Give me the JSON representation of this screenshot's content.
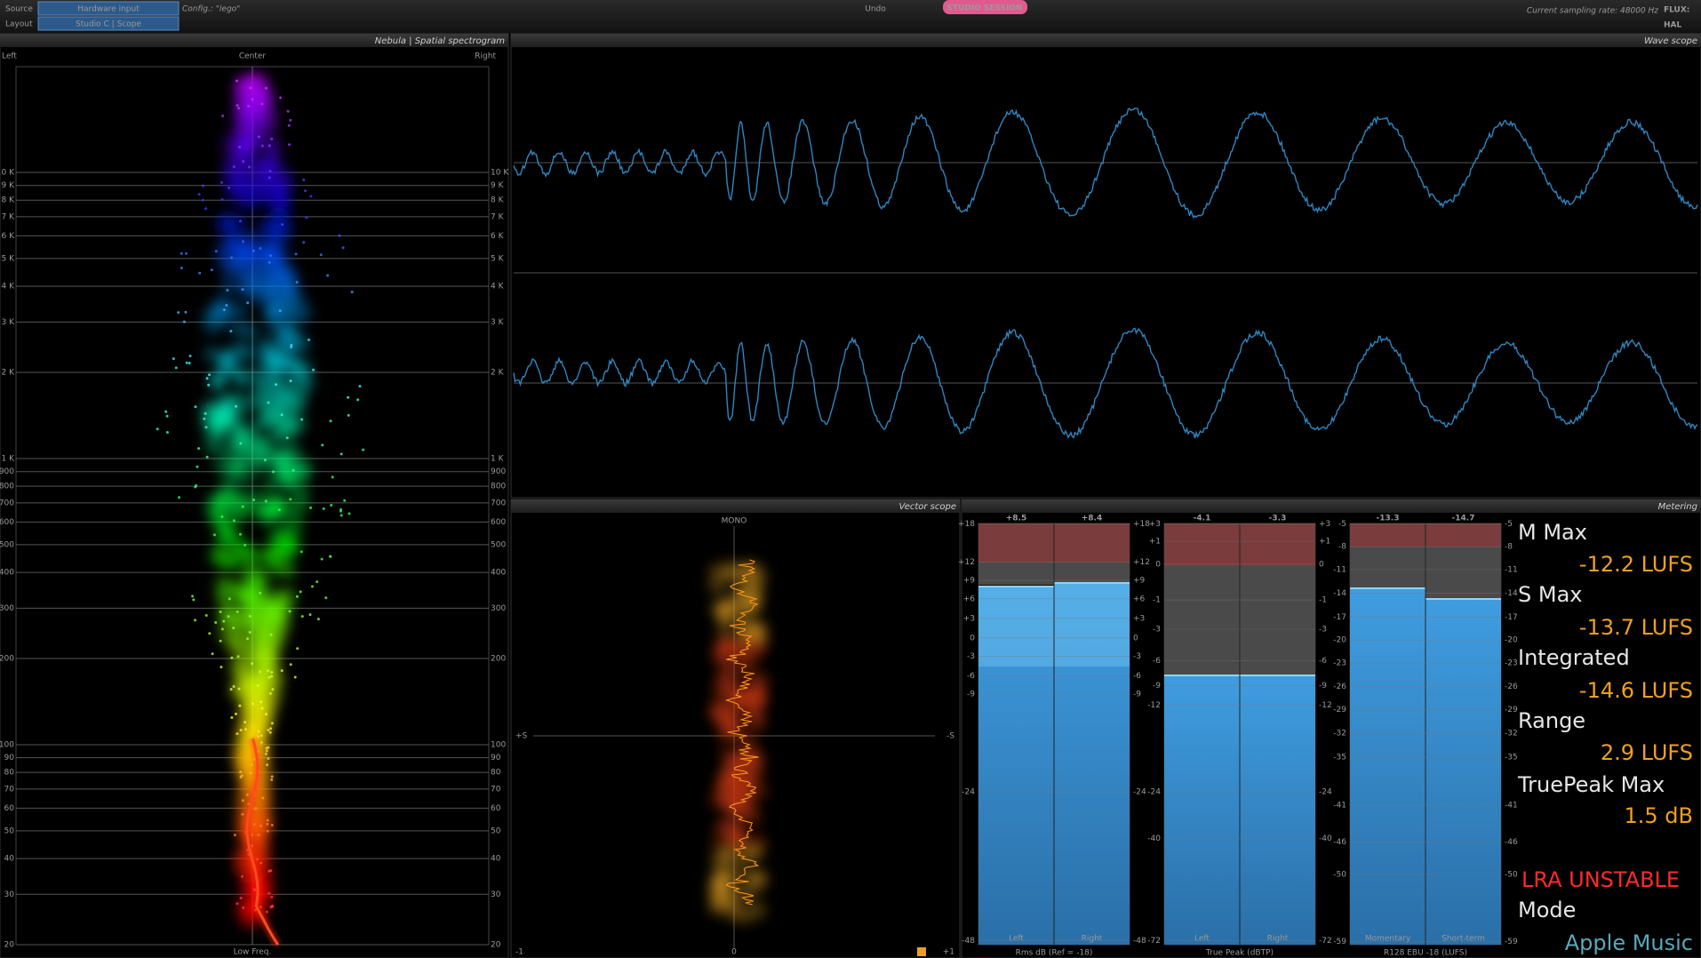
{
  "toolbar": {
    "source_label": "Source",
    "source_value": "Hardware input",
    "layout_label": "Layout",
    "layout_value": "Studio C | Scope",
    "config": "Config.: \"lego\"",
    "undo": "Undo",
    "session": "STUDIO SESSION",
    "sampling_rate": "Current sampling rate: 48000 Hz",
    "logo_top": "FLUX:",
    "logo_bottom": "HAL"
  },
  "spectrogram": {
    "title": "Nebula | Spatial spectrogram",
    "left": "Left",
    "center": "Center",
    "right": "Right",
    "bottom": "Low Freq.",
    "freq_ticks": [
      {
        "value": 10000,
        "label": "10 K"
      },
      {
        "value": 9000,
        "label": "9 K"
      },
      {
        "value": 8000,
        "label": "8 K"
      },
      {
        "value": 7000,
        "label": "7 K"
      },
      {
        "value": 6000,
        "label": "6 K"
      },
      {
        "value": 5000,
        "label": "5 K"
      },
      {
        "value": 4000,
        "label": "4 K"
      },
      {
        "value": 3000,
        "label": "3 K"
      },
      {
        "value": 2000,
        "label": "2 K"
      },
      {
        "value": 1000,
        "label": "1 K"
      },
      900,
      800,
      700,
      600,
      500,
      400,
      300,
      200,
      100,
      90,
      80,
      70,
      60,
      50,
      40,
      30,
      20
    ]
  },
  "wave_scope": {
    "title": "Wave scope"
  },
  "vector_scope": {
    "title": "Vector scope",
    "top": "MONO",
    "left": "+S",
    "right": "-S",
    "bottom_left": "-1",
    "bottom_center": "0",
    "bottom_right": "+1"
  },
  "metering": {
    "title": "Metering",
    "meters": [
      {
        "peaks": [
          "+8.5",
          "+8.4"
        ],
        "channels": [
          "Left",
          "Right"
        ],
        "footer": "Rms dB (Ref = -18)",
        "scale": [
          "+18",
          "+12",
          "+9",
          "+6",
          "+3",
          "0",
          "-3",
          "-6",
          "-9",
          "-24",
          "-48"
        ]
      },
      {
        "peaks": [
          "-4.1",
          "-3.3"
        ],
        "channels": [
          "Left",
          "Right"
        ],
        "footer": "True Peak (dBTP)",
        "scale": [
          "+3",
          "+1",
          "0",
          "-1",
          "-3",
          "-6",
          "-9",
          "-12",
          "-24",
          "-40",
          "-72"
        ]
      },
      {
        "peaks": [
          "-13.3",
          "-14.7"
        ],
        "channels": [
          "Momentary",
          "Short-term"
        ],
        "footer": "R128 EBU -18 (LUFS)",
        "scale": [
          "-5",
          "-8",
          "-11",
          "-14",
          "-17",
          "-20",
          "-23",
          "-26",
          "-29",
          "-32",
          "-35",
          "-41",
          "-46",
          "-50",
          "-59"
        ]
      }
    ],
    "readout": [
      {
        "label": "M Max",
        "value": "-12.2 LUFS"
      },
      {
        "label": "S Max",
        "value": "-13.7 LUFS"
      },
      {
        "label": "Integrated",
        "value": "-14.6 LUFS"
      },
      {
        "label": "Range",
        "value": "2.9 LUFS"
      },
      {
        "label": "TruePeak Max",
        "value": "1.5 dB"
      }
    ],
    "status": "LRA UNSTABLE",
    "mode_label": "Mode",
    "mode_value": "Apple Music"
  }
}
